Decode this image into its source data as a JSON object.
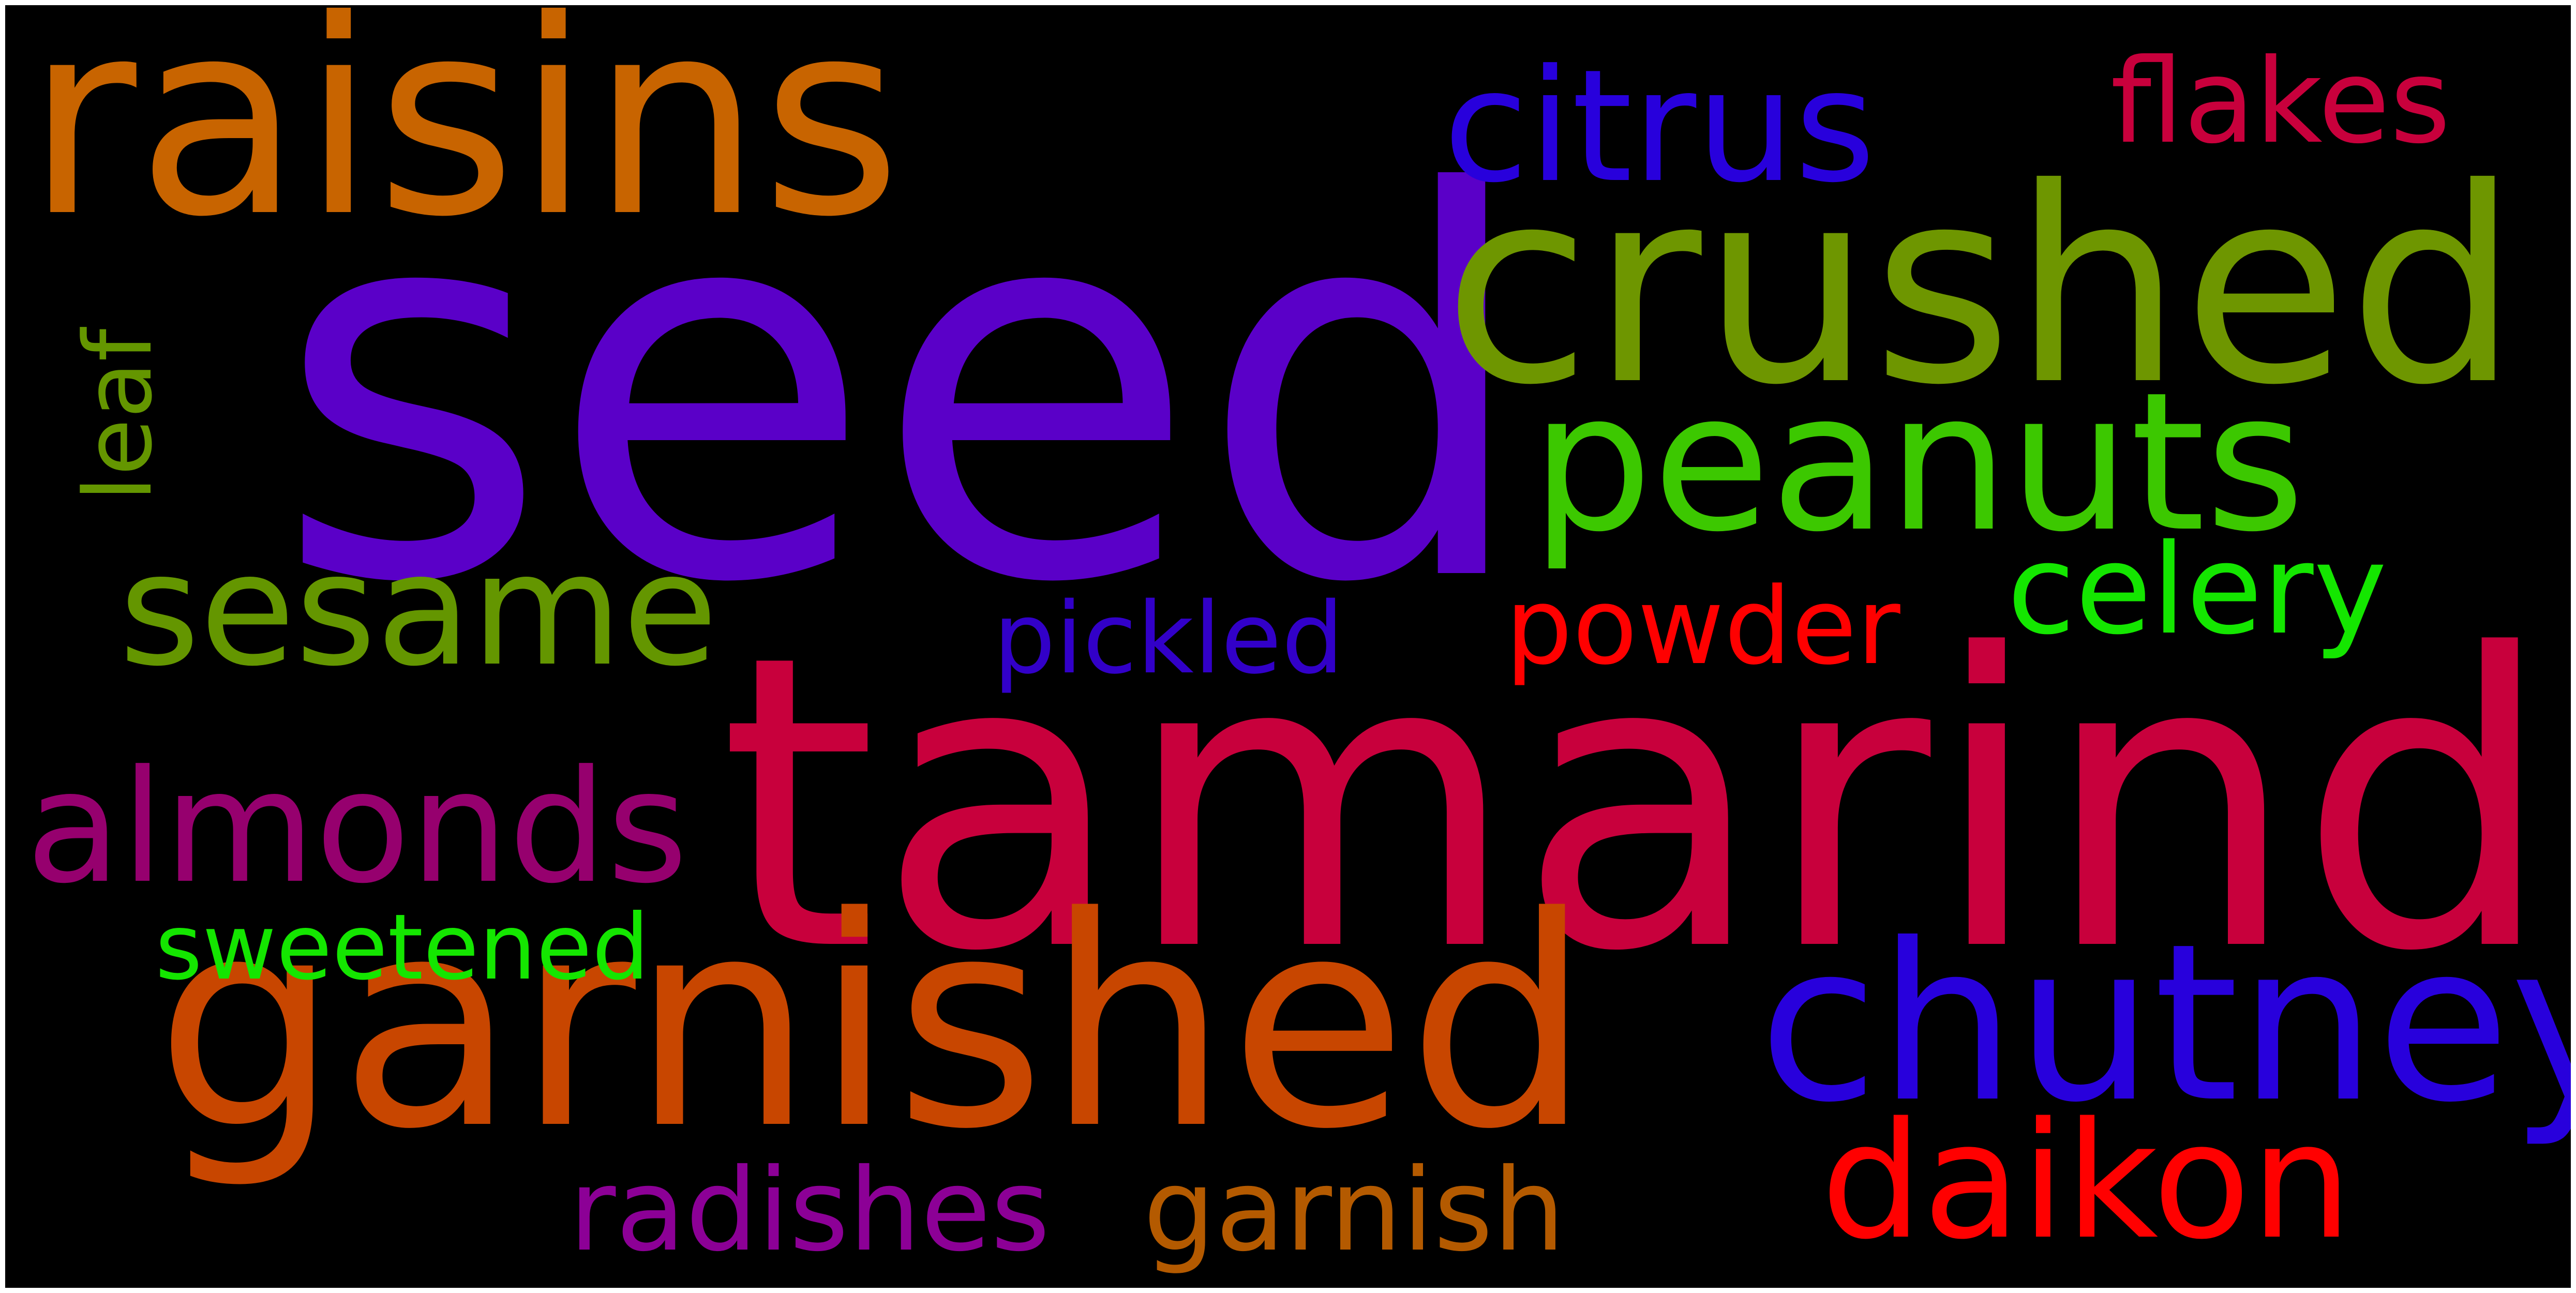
{
  "wordcloud": {
    "background": "#000000",
    "words": [
      {
        "key": "seed",
        "text": "seed",
        "color": "#5a00c8"
      },
      {
        "key": "tamarind",
        "text": "tamarind",
        "color": "#c8003c"
      },
      {
        "key": "raisins",
        "text": "raisins",
        "color": "#c86400"
      },
      {
        "key": "crushed",
        "text": "crushed",
        "color": "#6e9600"
      },
      {
        "key": "garnished",
        "text": "garnished",
        "color": "#c84600"
      },
      {
        "key": "chutney",
        "text": "chutney",
        "color": "#2800dc"
      },
      {
        "key": "peanuts",
        "text": "peanuts",
        "color": "#3cc800"
      },
      {
        "key": "daikon",
        "text": "daikon",
        "color": "#ff0000"
      },
      {
        "key": "citrus",
        "text": "citrus",
        "color": "#2800dc"
      },
      {
        "key": "almonds",
        "text": "almonds",
        "color": "#96006e"
      },
      {
        "key": "sesame",
        "text": "sesame",
        "color": "#649600"
      },
      {
        "key": "flakes",
        "text": "flakes",
        "color": "#c8003c"
      },
      {
        "key": "celery",
        "text": "celery",
        "color": "#14e600"
      },
      {
        "key": "powder",
        "text": "powder",
        "color": "#ff0000"
      },
      {
        "key": "pickled",
        "text": "pickled",
        "color": "#3200c8"
      },
      {
        "key": "radishes",
        "text": "radishes",
        "color": "#8c0096"
      },
      {
        "key": "garnish",
        "text": "garnish",
        "color": "#b45a00"
      },
      {
        "key": "sweetened",
        "text": "sweetened",
        "color": "#14e600"
      },
      {
        "key": "leaf",
        "text": "leaf",
        "color": "#649600"
      }
    ]
  }
}
